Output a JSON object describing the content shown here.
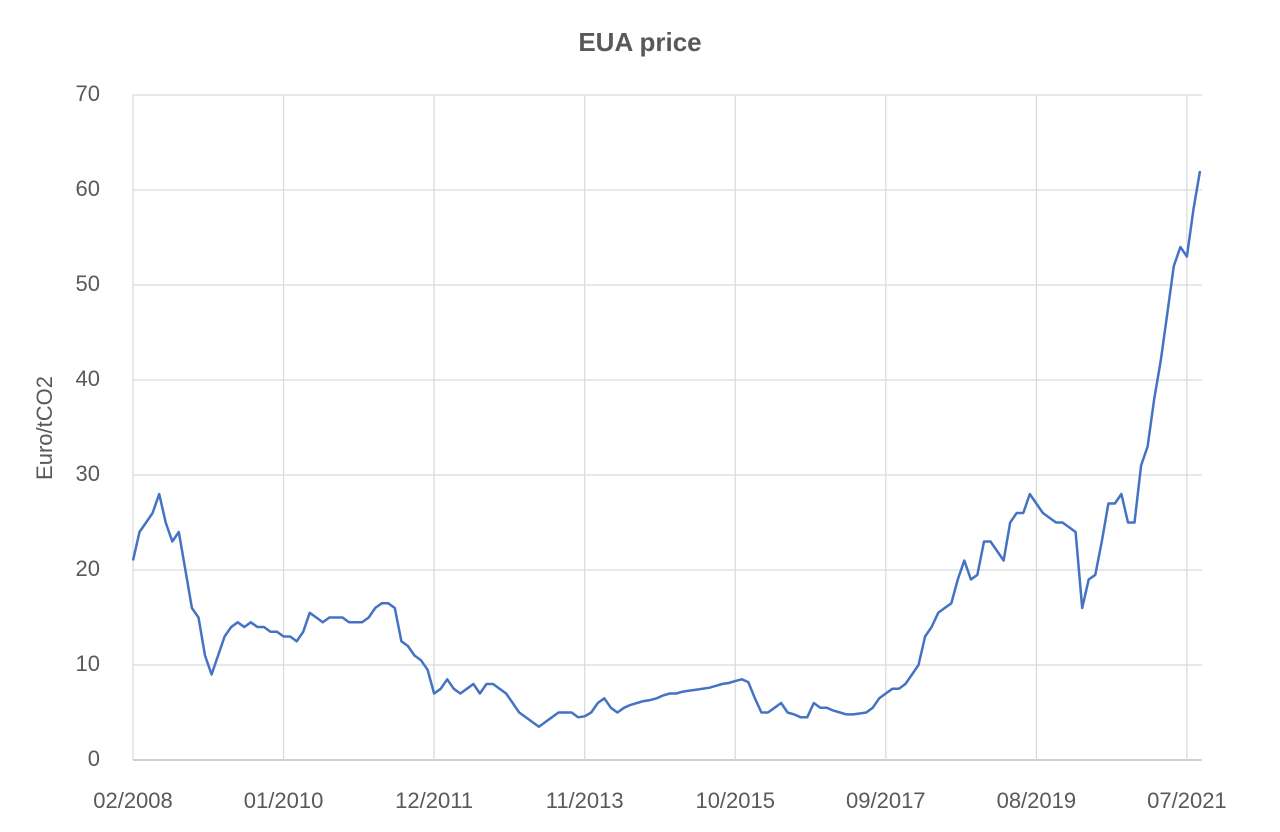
{
  "chart_data": {
    "type": "line",
    "title": "EUA price",
    "y_label": "Euro/tCO2",
    "x": [
      "02/2008",
      "03/2008",
      "04/2008",
      "05/2008",
      "06/2008",
      "07/2008",
      "08/2008",
      "09/2008",
      "10/2008",
      "11/2008",
      "12/2008",
      "01/2009",
      "02/2009",
      "03/2009",
      "04/2009",
      "05/2009",
      "06/2009",
      "07/2009",
      "08/2009",
      "09/2009",
      "10/2009",
      "11/2009",
      "12/2009",
      "01/2010",
      "02/2010",
      "03/2010",
      "04/2010",
      "05/2010",
      "06/2010",
      "07/2010",
      "08/2010",
      "09/2010",
      "10/2010",
      "11/2010",
      "12/2010",
      "01/2011",
      "02/2011",
      "03/2011",
      "04/2011",
      "05/2011",
      "06/2011",
      "07/2011",
      "08/2011",
      "09/2011",
      "10/2011",
      "11/2011",
      "12/2011",
      "01/2012",
      "02/2012",
      "03/2012",
      "04/2012",
      "05/2012",
      "06/2012",
      "07/2012",
      "08/2012",
      "09/2012",
      "10/2012",
      "11/2012",
      "12/2012",
      "01/2013",
      "02/2013",
      "03/2013",
      "04/2013",
      "05/2013",
      "06/2013",
      "07/2013",
      "08/2013",
      "09/2013",
      "10/2013",
      "11/2013",
      "12/2013",
      "01/2014",
      "02/2014",
      "03/2014",
      "04/2014",
      "05/2014",
      "06/2014",
      "07/2014",
      "08/2014",
      "09/2014",
      "10/2014",
      "11/2014",
      "12/2014",
      "01/2015",
      "02/2015",
      "03/2015",
      "04/2015",
      "05/2015",
      "06/2015",
      "07/2015",
      "08/2015",
      "09/2015",
      "10/2015",
      "11/2015",
      "12/2015",
      "01/2016",
      "02/2016",
      "03/2016",
      "04/2016",
      "05/2016",
      "06/2016",
      "07/2016",
      "08/2016",
      "09/2016",
      "10/2016",
      "11/2016",
      "12/2016",
      "01/2017",
      "02/2017",
      "03/2017",
      "04/2017",
      "05/2017",
      "06/2017",
      "07/2017",
      "08/2017",
      "09/2017",
      "10/2017",
      "11/2017",
      "12/2017",
      "01/2018",
      "02/2018",
      "03/2018",
      "04/2018",
      "05/2018",
      "06/2018",
      "07/2018",
      "08/2018",
      "09/2018",
      "10/2018",
      "11/2018",
      "12/2018",
      "01/2019",
      "02/2019",
      "03/2019",
      "04/2019",
      "05/2019",
      "06/2019",
      "07/2019",
      "08/2019",
      "09/2019",
      "10/2019",
      "11/2019",
      "12/2019",
      "01/2020",
      "02/2020",
      "03/2020",
      "04/2020",
      "05/2020",
      "06/2020",
      "07/2020",
      "08/2020",
      "09/2020",
      "10/2020",
      "11/2020",
      "12/2020",
      "01/2021",
      "02/2021",
      "03/2021",
      "04/2021",
      "05/2021",
      "06/2021",
      "07/2021",
      "08/2021",
      "09/2021"
    ],
    "series": [
      {
        "name": "EUA price",
        "color": "#4472c4",
        "values": [
          21,
          24,
          25,
          26,
          28,
          25,
          23,
          24,
          20,
          16,
          15,
          11,
          9,
          11,
          13,
          14,
          14.5,
          14,
          14.5,
          14,
          14,
          13.5,
          13.5,
          13,
          13,
          12.5,
          13.5,
          15.5,
          15,
          14.5,
          15,
          15,
          15,
          14.5,
          14.5,
          14.5,
          15,
          16,
          16.5,
          16.5,
          16,
          12.5,
          12,
          11,
          10.5,
          9.5,
          7,
          7.5,
          8.5,
          7.5,
          7,
          7.5,
          8,
          7,
          8,
          8,
          7.5,
          7,
          6,
          5,
          4.5,
          4,
          3.5,
          4,
          4.5,
          5,
          5,
          5,
          4.5,
          4.6,
          5,
          6,
          6.5,
          5.5,
          5,
          5.5,
          5.8,
          6,
          6.2,
          6.3,
          6.5,
          6.8,
          7,
          7,
          7.2,
          7.3,
          7.4,
          7.5,
          7.6,
          7.8,
          8,
          8.1,
          8.3,
          8.5,
          8.2,
          6.5,
          5,
          5,
          5.5,
          6,
          5,
          4.8,
          4.5,
          4.5,
          6,
          5.5,
          5.5,
          5.2,
          5,
          4.8,
          4.8,
          4.9,
          5,
          5.5,
          6.5,
          7,
          7.5,
          7.5,
          8,
          9,
          10,
          13,
          14,
          15.5,
          16,
          16.5,
          19,
          21,
          19,
          19.5,
          23,
          23,
          22,
          21,
          25,
          26,
          26,
          28,
          27,
          26,
          25.5,
          25,
          25,
          24.5,
          24,
          16,
          19,
          19.5,
          23,
          27,
          27,
          28,
          25,
          25,
          31,
          33,
          38,
          42,
          47,
          52,
          54,
          53,
          58,
          62
        ]
      }
    ],
    "xlim": [
      "02/2008",
      "09/2021"
    ],
    "xticks": [
      "02/2008",
      "01/2010",
      "12/2011",
      "11/2013",
      "10/2015",
      "09/2017",
      "08/2019",
      "07/2021"
    ],
    "ylim": [
      0,
      70
    ],
    "yticks": [
      0,
      10,
      20,
      30,
      40,
      50,
      60,
      70
    ],
    "grid": true
  }
}
